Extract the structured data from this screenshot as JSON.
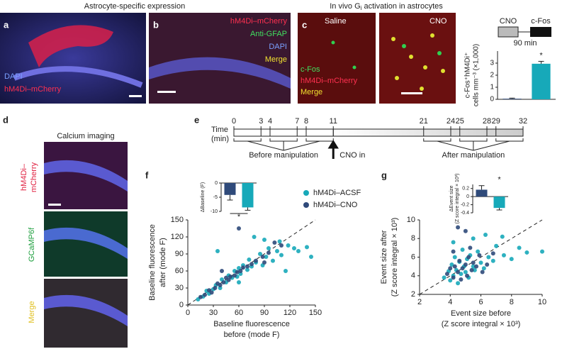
{
  "panels": {
    "header_ab": "Astrocyte-specific expression",
    "header_c": {
      "pre": "In vivo G",
      "sub": "i",
      "post": " activation in astrocytes"
    },
    "a": {
      "label": "a",
      "legend": [
        "DAPI",
        "hM4Di–mCherry"
      ]
    },
    "b": {
      "label": "b",
      "legend": [
        "hM4Di–mCherry",
        "Anti-GFAP",
        "DAPI",
        "Merge"
      ]
    },
    "c": {
      "label": "c",
      "images": [
        "Saline",
        "CNO"
      ],
      "legend": [
        "c-Fos",
        "hM4Di–mCherry",
        "Merge"
      ],
      "protocol": [
        "CNO",
        "c-Fos",
        "90 min"
      ]
    },
    "d": {
      "label": "d",
      "title": "Calcium imaging",
      "rows": [
        [
          "hM4Di–",
          "mCherry"
        ],
        [
          "GCaMP6f"
        ],
        [
          "Merge"
        ]
      ]
    },
    "e": {
      "label": "e"
    },
    "f": {
      "label": "f"
    },
    "g": {
      "label": "g"
    }
  },
  "chart_data": [
    {
      "type": "bar",
      "ylabel": [
        "c-Fos⁺hM4Di⁺",
        "cells mm⁻³ (×1,000)"
      ],
      "ylim": [
        0,
        4
      ],
      "yticks": [
        0,
        1,
        2,
        3
      ],
      "values": [
        0.05,
        2.95
      ],
      "errors": [
        0.05,
        0.2
      ],
      "colors": [
        "#2f4a7a",
        "#17a9b9"
      ],
      "annotation": "*"
    },
    {
      "type": "timeline",
      "xlabel": [
        "Time",
        "(min)"
      ],
      "xlim": [
        0,
        32
      ],
      "xticks": [
        0,
        3,
        4,
        7,
        8,
        11,
        21,
        24,
        25,
        28,
        29,
        32
      ],
      "labels": [
        "Before manipulation",
        "CNO in",
        "After manipulation"
      ]
    },
    {
      "type": "bar",
      "ylabel": [
        "ΔBaseline (F)"
      ],
      "ylim": [
        -10,
        0
      ],
      "yticks": [
        0,
        -5,
        -10
      ],
      "values": [
        -4.2,
        -8.6
      ],
      "errors": [
        1.8,
        1.0
      ],
      "colors": [
        "#2f4a7a",
        "#17a9b9"
      ],
      "annotation": "*"
    },
    {
      "type": "scatter",
      "xlabel": [
        "Baseline fluorescence",
        "before (mode F)"
      ],
      "ylabel": [
        "Baseline fluorescence",
        "after (mode F)"
      ],
      "xlim": [
        0,
        150
      ],
      "xticks": [
        0,
        30,
        60,
        90,
        120,
        150
      ],
      "ylim": [
        0,
        150
      ],
      "yticks": [
        0,
        30,
        60,
        90,
        120,
        150
      ],
      "series": [
        {
          "name": "hM4Di–ACSF",
          "color": "#17a9b9",
          "x": [
            12,
            18,
            22,
            25,
            30,
            33,
            38,
            40,
            45,
            48,
            52,
            55,
            58,
            60,
            62,
            65,
            70,
            72,
            75,
            80,
            85,
            88,
            92,
            95,
            100,
            105,
            110,
            118,
            125,
            130,
            145,
            35,
            60,
            78,
            90,
            108,
            115,
            140
          ],
          "values": [
            10,
            15,
            25,
            20,
            28,
            35,
            30,
            45,
            40,
            52,
            48,
            60,
            50,
            65,
            55,
            70,
            62,
            80,
            68,
            75,
            90,
            70,
            85,
            100,
            78,
            95,
            88,
            105,
            100,
            95,
            85,
            95,
            40,
            120,
            115,
            112,
            60,
            102
          ]
        },
        {
          "name": "hM4Di–CNO",
          "color": "#2f4a7a",
          "x": [
            15,
            20,
            25,
            28,
            32,
            35,
            38,
            42,
            45,
            48,
            50,
            55,
            58,
            62,
            65,
            70,
            75,
            80,
            88,
            95,
            102,
            110,
            60,
            90,
            40
          ],
          "values": [
            14,
            18,
            26,
            22,
            30,
            38,
            35,
            40,
            48,
            44,
            50,
            52,
            58,
            60,
            66,
            68,
            72,
            78,
            85,
            92,
            110,
            105,
            135,
            75,
            60
          ]
        }
      ]
    },
    {
      "type": "bar",
      "ylabel": [
        "ΔEvent size",
        "(Z score integral × 10³)"
      ],
      "ylim": [
        -0.4,
        0.3
      ],
      "yticks": [
        0.2,
        0,
        -0.2,
        -0.4
      ],
      "values": [
        0.17,
        -0.28
      ],
      "errors": [
        0.1,
        0.05
      ],
      "colors": [
        "#2f4a7a",
        "#17a9b9"
      ],
      "annotation": "*"
    },
    {
      "type": "scatter",
      "xlabel": [
        "Event size before",
        "(Z score integral × 10³)"
      ],
      "ylabel": [
        "Event size after",
        "(Z score integral × 10³)"
      ],
      "xlim": [
        2,
        10
      ],
      "xticks": [
        2,
        4,
        6,
        8,
        10
      ],
      "ylim": [
        2,
        10
      ],
      "yticks": [
        2,
        4,
        6,
        8,
        10
      ],
      "series": [
        {
          "color": "#17a9b9",
          "x": [
            3.6,
            3.9,
            4.0,
            4.1,
            4.2,
            4.3,
            4.4,
            4.5,
            4.6,
            4.7,
            4.8,
            4.9,
            5.0,
            5.1,
            5.2,
            5.3,
            5.5,
            5.6,
            5.8,
            6.0,
            6.2,
            6.5,
            6.8,
            7.0,
            7.5,
            8.0,
            8.5,
            9.0,
            10.0,
            4.2,
            5.5,
            6.3,
            7.4
          ],
          "values": [
            3.8,
            4.5,
            3.5,
            5.2,
            4.0,
            6.0,
            4.6,
            3.2,
            5.5,
            4.2,
            6.8,
            5.0,
            4.4,
            5.8,
            3.8,
            6.2,
            5.0,
            4.6,
            6.6,
            5.4,
            4.8,
            6.0,
            5.6,
            7.2,
            6.2,
            5.8,
            7.0,
            6.5,
            6.6,
            7.6,
            8.0,
            8.4,
            8.2
          ]
        },
        {
          "color": "#2f4a7a",
          "x": [
            3.8,
            4.0,
            4.2,
            4.3,
            4.5,
            4.6,
            4.7,
            4.8,
            5.0,
            5.1,
            5.2,
            5.4,
            5.5,
            5.7,
            5.9,
            6.1,
            6.4,
            6.8,
            5.0,
            4.5,
            5.3,
            4.2
          ],
          "values": [
            4.2,
            4.8,
            3.8,
            5.0,
            4.4,
            5.6,
            3.6,
            4.8,
            5.2,
            4.0,
            6.0,
            4.6,
            5.4,
            5.0,
            6.2,
            4.4,
            5.2,
            6.4,
            8.8,
            9.2,
            7.0,
            6.6
          ]
        }
      ]
    }
  ]
}
